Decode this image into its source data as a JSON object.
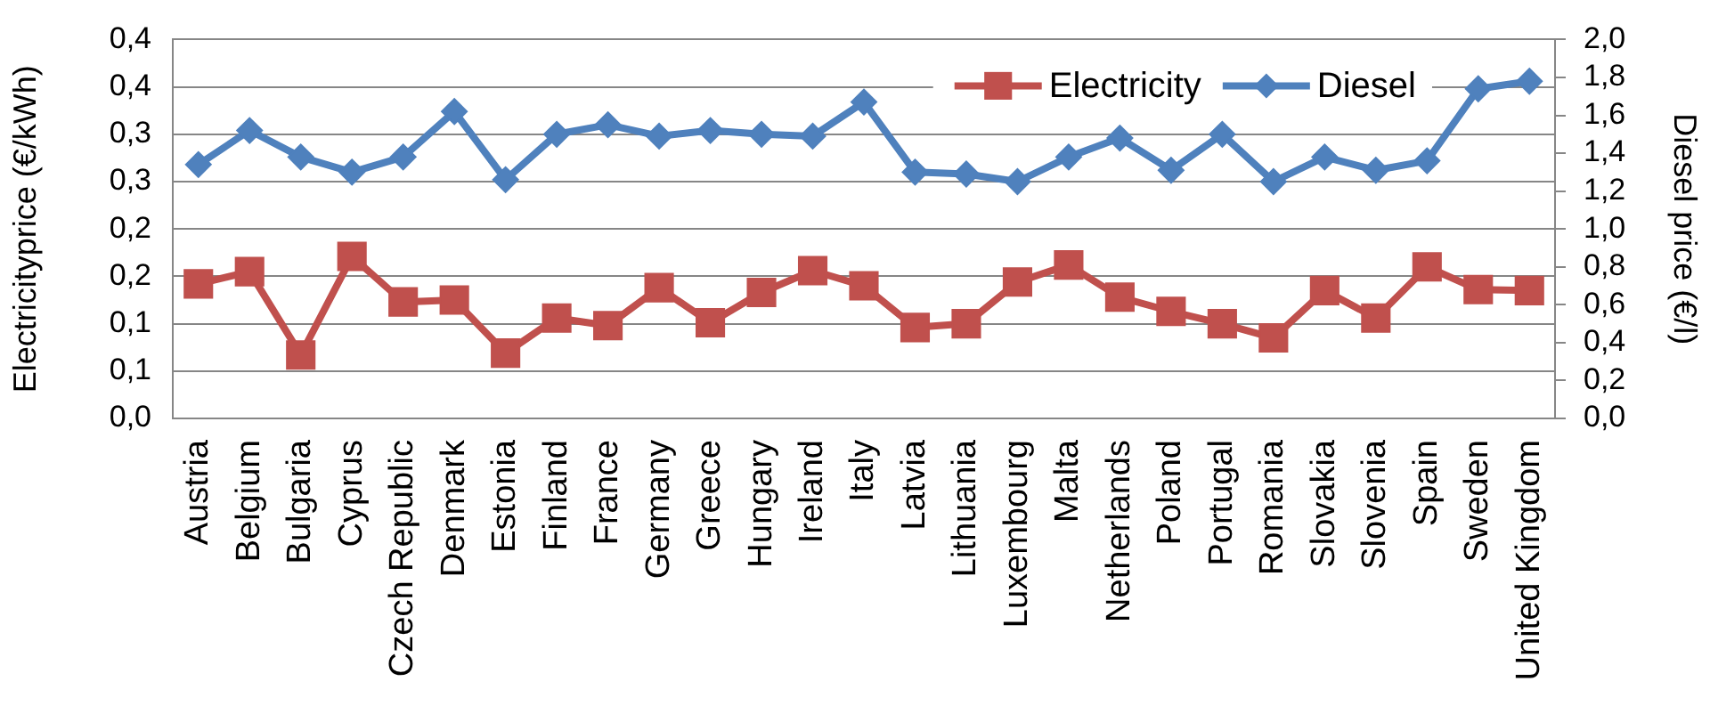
{
  "chart_data": {
    "type": "line",
    "categories": [
      "Austria",
      "Belgium",
      "Bulgaria",
      "Cyprus",
      "Czech Republic",
      "Denmark",
      "Estonia",
      "Finland",
      "France",
      "Germany",
      "Greece",
      "Hungary",
      "Ireland",
      "Italy",
      "Latvia",
      "Lithuania",
      "Luxembourg",
      "Malta",
      "Netherlands",
      "Poland",
      "Portugal",
      "Romania",
      "Slovakia",
      "Slovenia",
      "Spain",
      "Sweden",
      "United Kingdom"
    ],
    "series": [
      {
        "name": "Electricity",
        "color": "#c0504d",
        "marker": "square",
        "values": [
          0.142,
          0.155,
          0.067,
          0.171,
          0.123,
          0.125,
          0.069,
          0.106,
          0.098,
          0.138,
          0.101,
          0.133,
          0.156,
          0.14,
          0.096,
          0.1,
          0.144,
          0.162,
          0.128,
          0.113,
          0.1,
          0.085,
          0.135,
          0.106,
          0.16,
          0.136,
          0.135
        ]
      },
      {
        "name": "Diesel",
        "color": "#4f81bd",
        "marker": "diamond",
        "axis": "y2",
        "values": [
          1.34,
          1.52,
          1.38,
          1.3,
          1.38,
          1.62,
          1.26,
          1.5,
          1.55,
          1.49,
          1.52,
          1.5,
          1.49,
          1.67,
          1.3,
          1.29,
          1.25,
          1.38,
          1.48,
          1.31,
          1.5,
          1.25,
          1.38,
          1.31,
          1.36,
          1.74,
          1.78
        ]
      }
    ],
    "ylabel": "Electricityprice (€/kWh)",
    "y2label": "Diesel price (€/l)",
    "ylim": [
      0,
      0.4
    ],
    "yticks": [
      {
        "value": 0,
        "label": "0,0"
      },
      {
        "value": 0.05,
        "label": "0,1"
      },
      {
        "value": 0.1,
        "label": "0,1"
      },
      {
        "value": 0.15,
        "label": "0,2"
      },
      {
        "value": 0.2,
        "label": "0,2"
      },
      {
        "value": 0.25,
        "label": "0,3"
      },
      {
        "value": 0.3,
        "label": "0,3"
      },
      {
        "value": 0.35,
        "label": "0,4"
      },
      {
        "value": 0.4,
        "label": "0,4"
      }
    ],
    "y2lim": [
      0,
      2
    ],
    "y2ticks": [
      {
        "value": 0,
        "label": "0,0"
      },
      {
        "value": 0.2,
        "label": "0,2"
      },
      {
        "value": 0.4,
        "label": "0,4"
      },
      {
        "value": 0.6,
        "label": "0,6"
      },
      {
        "value": 0.8,
        "label": "0,8"
      },
      {
        "value": 1,
        "label": "1,0"
      },
      {
        "value": 1.2,
        "label": "1,2"
      },
      {
        "value": 1.4,
        "label": "1,4"
      },
      {
        "value": 1.6,
        "label": "1,6"
      },
      {
        "value": 1.8,
        "label": "1,8"
      },
      {
        "value": 2,
        "label": "2,0"
      }
    ],
    "grid": "y",
    "legend": "top right"
  }
}
